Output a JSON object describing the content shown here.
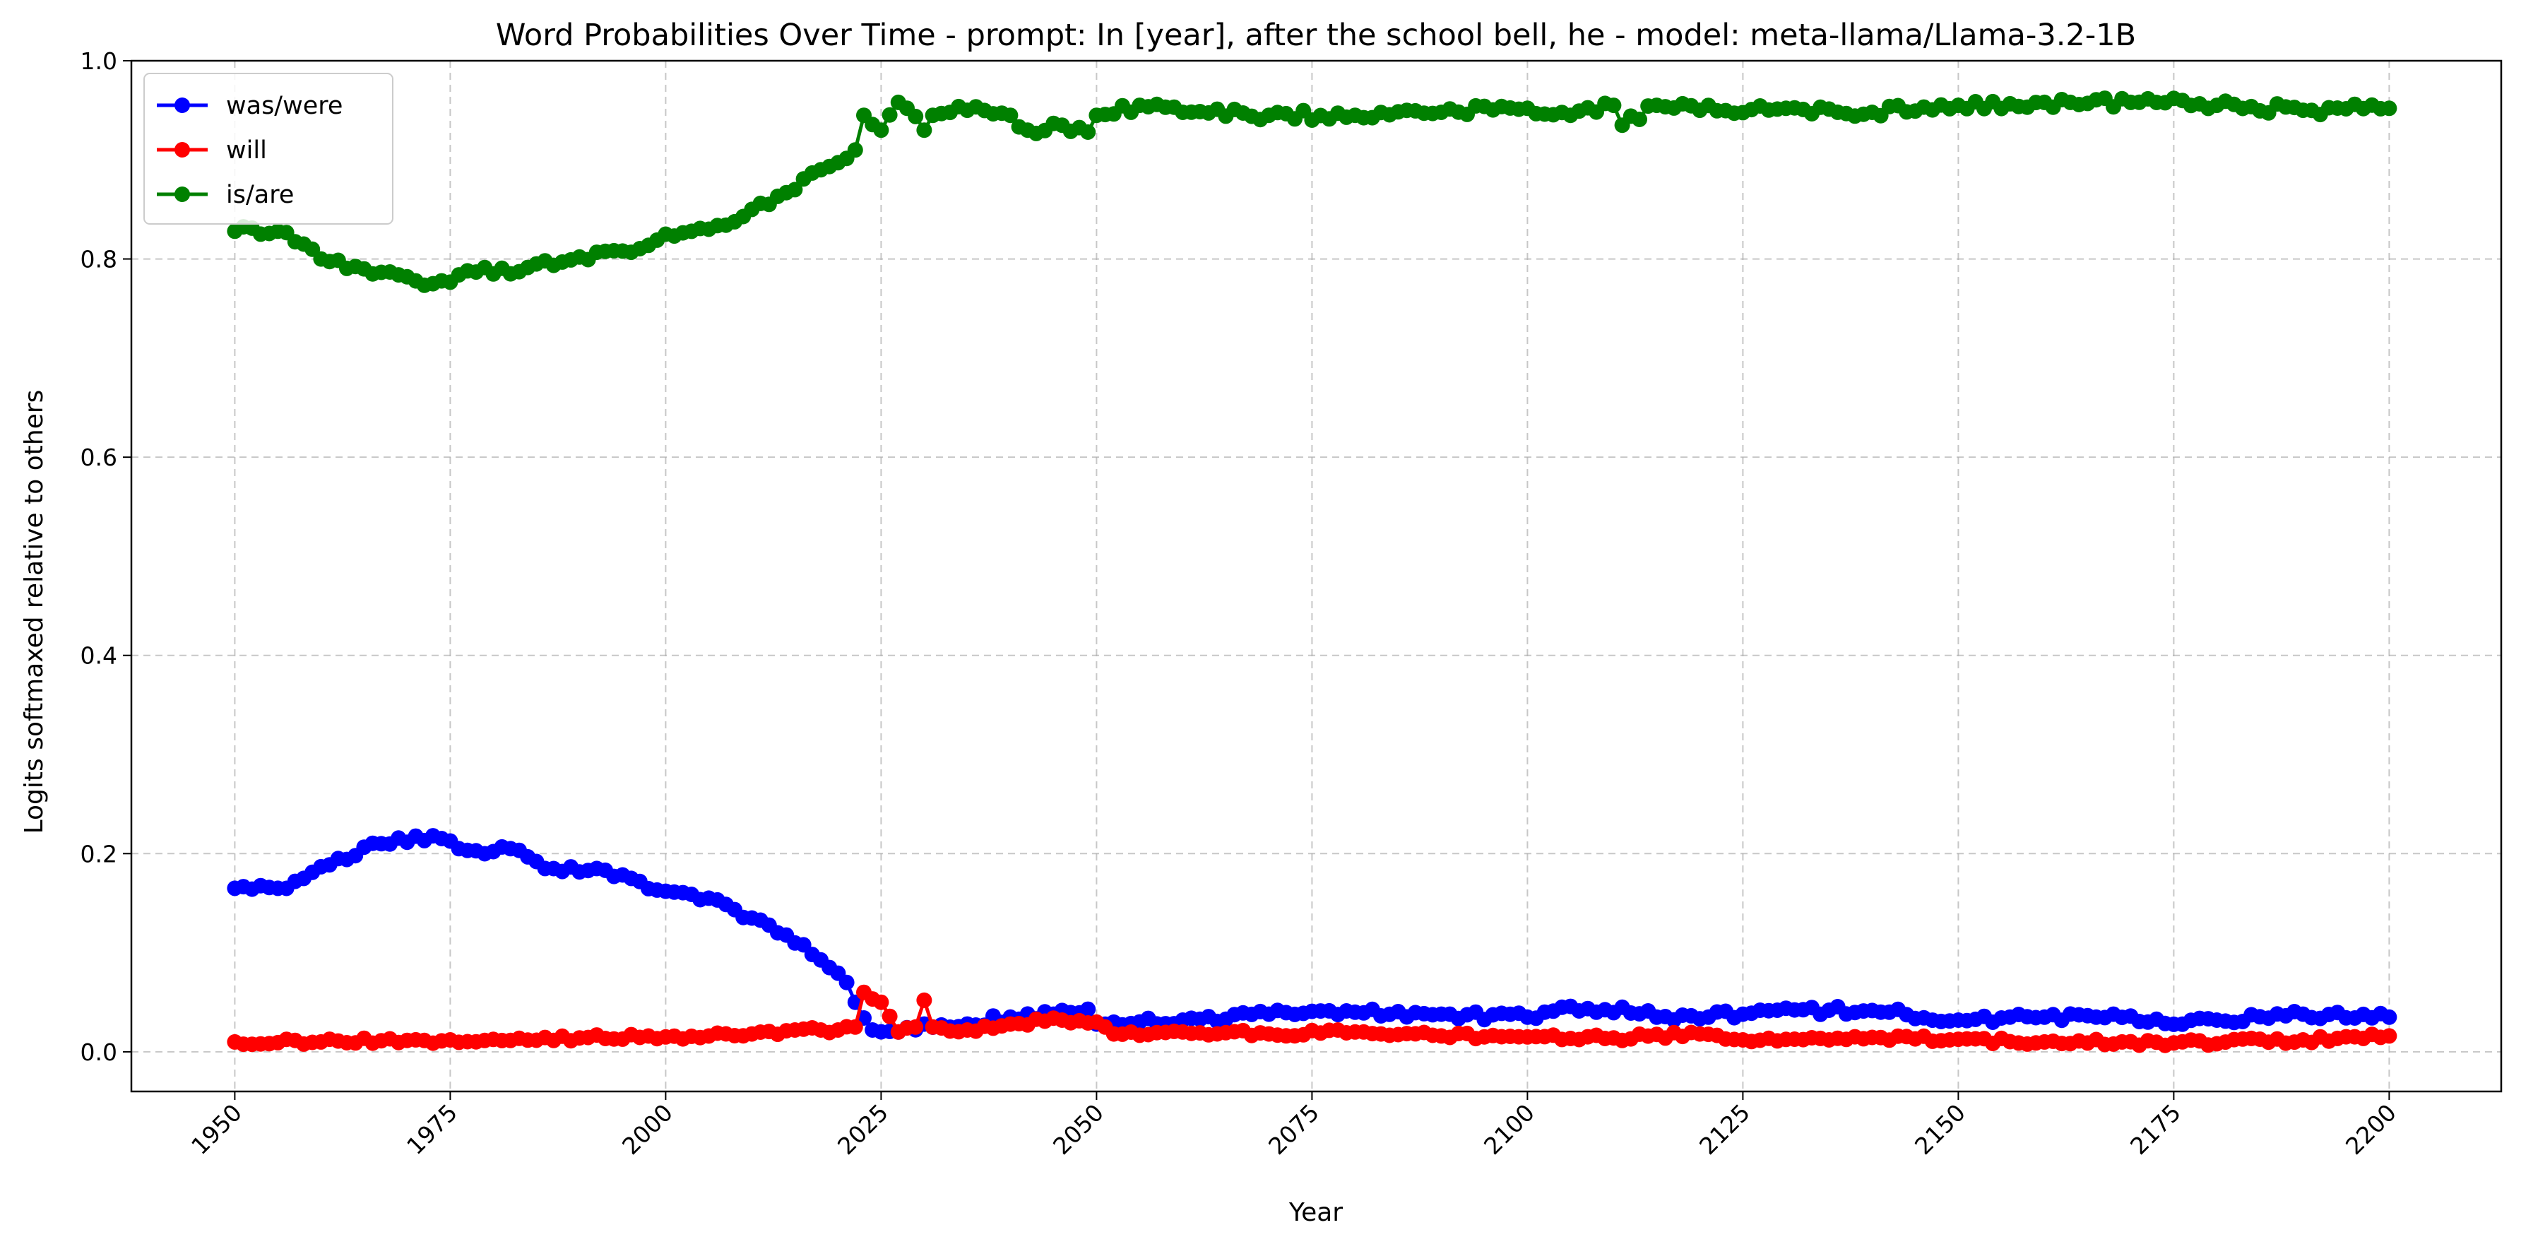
{
  "chart_data": {
    "type": "line",
    "title": "Word Probabilities Over Time - prompt: In [year], after the school bell, he - model: meta-llama/Llama-3.2-1B",
    "xlabel": "Year",
    "ylabel": "Logits softmaxed relative to others",
    "xlim": [
      1938,
      2213
    ],
    "ylim": [
      -0.04,
      1.0
    ],
    "xticks": [
      1950,
      1975,
      2000,
      2025,
      2050,
      2075,
      2100,
      2125,
      2150,
      2175,
      2200
    ],
    "xtick_labels": [
      "1950",
      "1975",
      "2000",
      "2025",
      "2050",
      "2075",
      "2100",
      "2125",
      "2150",
      "2175",
      "2200"
    ],
    "yticks": [
      0.0,
      0.2,
      0.4,
      0.6,
      0.8,
      1.0
    ],
    "ytick_labels": [
      "0.0",
      "0.2",
      "0.4",
      "0.6",
      "0.8",
      "1.0"
    ],
    "grid": true,
    "legend_position": "top-left",
    "x_start": 1950,
    "x_end": 2200,
    "series": [
      {
        "name": "was/were",
        "color": "#0000ff",
        "keypoints": [
          [
            1950,
            0.165
          ],
          [
            1955,
            0.165
          ],
          [
            1958,
            0.175
          ],
          [
            1962,
            0.195
          ],
          [
            1967,
            0.21
          ],
          [
            1973,
            0.218
          ],
          [
            1976,
            0.205
          ],
          [
            1980,
            0.202
          ],
          [
            1982,
            0.205
          ],
          [
            1985,
            0.192
          ],
          [
            1988,
            0.182
          ],
          [
            1992,
            0.185
          ],
          [
            1996,
            0.175
          ],
          [
            2000,
            0.162
          ],
          [
            2005,
            0.155
          ],
          [
            2010,
            0.135
          ],
          [
            2013,
            0.12
          ],
          [
            2016,
            0.108
          ],
          [
            2019,
            0.085
          ],
          [
            2021,
            0.07
          ],
          [
            2022,
            0.05
          ],
          [
            2024,
            0.022
          ],
          [
            2027,
            0.02
          ],
          [
            2030,
            0.028
          ],
          [
            2035,
            0.028
          ],
          [
            2040,
            0.035
          ],
          [
            2045,
            0.038
          ],
          [
            2049,
            0.043
          ],
          [
            2050,
            0.028
          ],
          [
            2060,
            0.032
          ],
          [
            2070,
            0.038
          ],
          [
            2080,
            0.04
          ],
          [
            2090,
            0.038
          ],
          [
            2100,
            0.035
          ],
          [
            2104,
            0.045
          ],
          [
            2108,
            0.04
          ],
          [
            2111,
            0.045
          ],
          [
            2115,
            0.035
          ],
          [
            2125,
            0.038
          ],
          [
            2135,
            0.042
          ],
          [
            2142,
            0.04
          ],
          [
            2150,
            0.032
          ],
          [
            2160,
            0.035
          ],
          [
            2168,
            0.038
          ],
          [
            2172,
            0.03
          ],
          [
            2180,
            0.032
          ],
          [
            2190,
            0.038
          ],
          [
            2200,
            0.035
          ]
        ],
        "jitter": 0.004
      },
      {
        "name": "will",
        "color": "#ff0000",
        "keypoints": [
          [
            1950,
            0.01
          ],
          [
            1960,
            0.01
          ],
          [
            1975,
            0.012
          ],
          [
            1990,
            0.014
          ],
          [
            2000,
            0.015
          ],
          [
            2010,
            0.018
          ],
          [
            2015,
            0.022
          ],
          [
            2020,
            0.022
          ],
          [
            2022,
            0.025
          ],
          [
            2023,
            0.06
          ],
          [
            2025,
            0.05
          ],
          [
            2027,
            0.02
          ],
          [
            2029,
            0.025
          ],
          [
            2030,
            0.052
          ],
          [
            2031,
            0.025
          ],
          [
            2035,
            0.022
          ],
          [
            2040,
            0.028
          ],
          [
            2046,
            0.032
          ],
          [
            2050,
            0.03
          ],
          [
            2052,
            0.018
          ],
          [
            2060,
            0.02
          ],
          [
            2070,
            0.018
          ],
          [
            2080,
            0.02
          ],
          [
            2090,
            0.016
          ],
          [
            2100,
            0.015
          ],
          [
            2110,
            0.014
          ],
          [
            2120,
            0.018
          ],
          [
            2125,
            0.012
          ],
          [
            2135,
            0.012
          ],
          [
            2145,
            0.013
          ],
          [
            2160,
            0.01
          ],
          [
            2175,
            0.009
          ],
          [
            2190,
            0.012
          ],
          [
            2200,
            0.016
          ]
        ],
        "jitter": 0.003
      },
      {
        "name": "is/are",
        "color": "#008000",
        "keypoints": [
          [
            1950,
            0.828
          ],
          [
            1955,
            0.828
          ],
          [
            1958,
            0.815
          ],
          [
            1960,
            0.8
          ],
          [
            1965,
            0.79
          ],
          [
            1970,
            0.782
          ],
          [
            1973,
            0.775
          ],
          [
            1977,
            0.788
          ],
          [
            1982,
            0.785
          ],
          [
            1985,
            0.795
          ],
          [
            1990,
            0.802
          ],
          [
            1995,
            0.808
          ],
          [
            2000,
            0.825
          ],
          [
            2005,
            0.83
          ],
          [
            2010,
            0.85
          ],
          [
            2015,
            0.87
          ],
          [
            2018,
            0.89
          ],
          [
            2022,
            0.91
          ],
          [
            2023,
            0.945
          ],
          [
            2025,
            0.93
          ],
          [
            2027,
            0.958
          ],
          [
            2030,
            0.93
          ],
          [
            2031,
            0.945
          ],
          [
            2035,
            0.95
          ],
          [
            2040,
            0.945
          ],
          [
            2042,
            0.93
          ],
          [
            2046,
            0.935
          ],
          [
            2049,
            0.928
          ],
          [
            2050,
            0.945
          ],
          [
            2055,
            0.955
          ],
          [
            2060,
            0.948
          ],
          [
            2070,
            0.945
          ],
          [
            2080,
            0.945
          ],
          [
            2090,
            0.948
          ],
          [
            2100,
            0.952
          ],
          [
            2105,
            0.945
          ],
          [
            2110,
            0.955
          ],
          [
            2111,
            0.935
          ],
          [
            2115,
            0.955
          ],
          [
            2120,
            0.95
          ],
          [
            2130,
            0.952
          ],
          [
            2140,
            0.948
          ],
          [
            2150,
            0.955
          ],
          [
            2160,
            0.958
          ],
          [
            2170,
            0.958
          ],
          [
            2175,
            0.962
          ],
          [
            2180,
            0.955
          ],
          [
            2190,
            0.95
          ],
          [
            2200,
            0.952
          ]
        ],
        "jitter": 0.005
      }
    ]
  }
}
